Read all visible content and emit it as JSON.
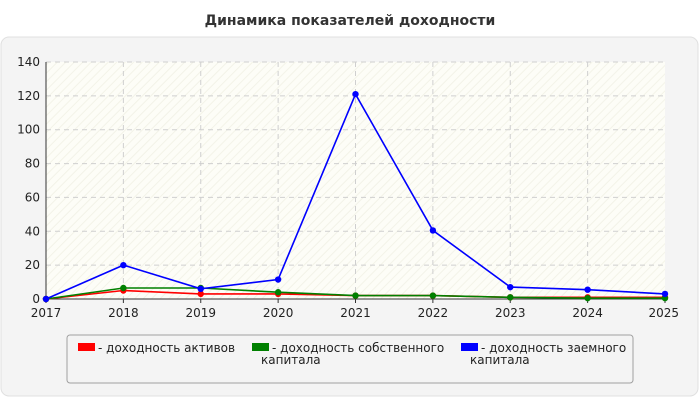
{
  "chart_data": {
    "type": "line",
    "title": "Динамика показателей доходности",
    "xlabel": "",
    "ylabel": "",
    "categories": [
      "2017",
      "2018",
      "2019",
      "2020",
      "2021",
      "2022",
      "2023",
      "2024",
      "2025"
    ],
    "ylim": [
      0,
      140
    ],
    "yticks": [
      0,
      20,
      40,
      60,
      80,
      100,
      120,
      140
    ],
    "grid": true,
    "legend_position": "bottom",
    "series": [
      {
        "name": "- доходность активов",
        "name_lines": [
          "- доходность активов"
        ],
        "color": "#ff0000",
        "values": [
          0,
          5,
          3,
          3,
          2,
          2,
          1,
          1,
          1
        ]
      },
      {
        "name": "- доходность собственного капитала",
        "name_lines": [
          "- доходность собственного",
          "капитала"
        ],
        "color": "#008000",
        "values": [
          0,
          6.5,
          6.5,
          4,
          2,
          2,
          1,
          0.5,
          0.5
        ]
      },
      {
        "name": "- доходность заемного капитала",
        "name_lines": [
          "- доходность заемного",
          "капитала"
        ],
        "color": "#0000ff",
        "values": [
          0,
          20,
          6,
          11.5,
          121,
          40.5,
          7,
          5.5,
          3
        ]
      }
    ]
  }
}
